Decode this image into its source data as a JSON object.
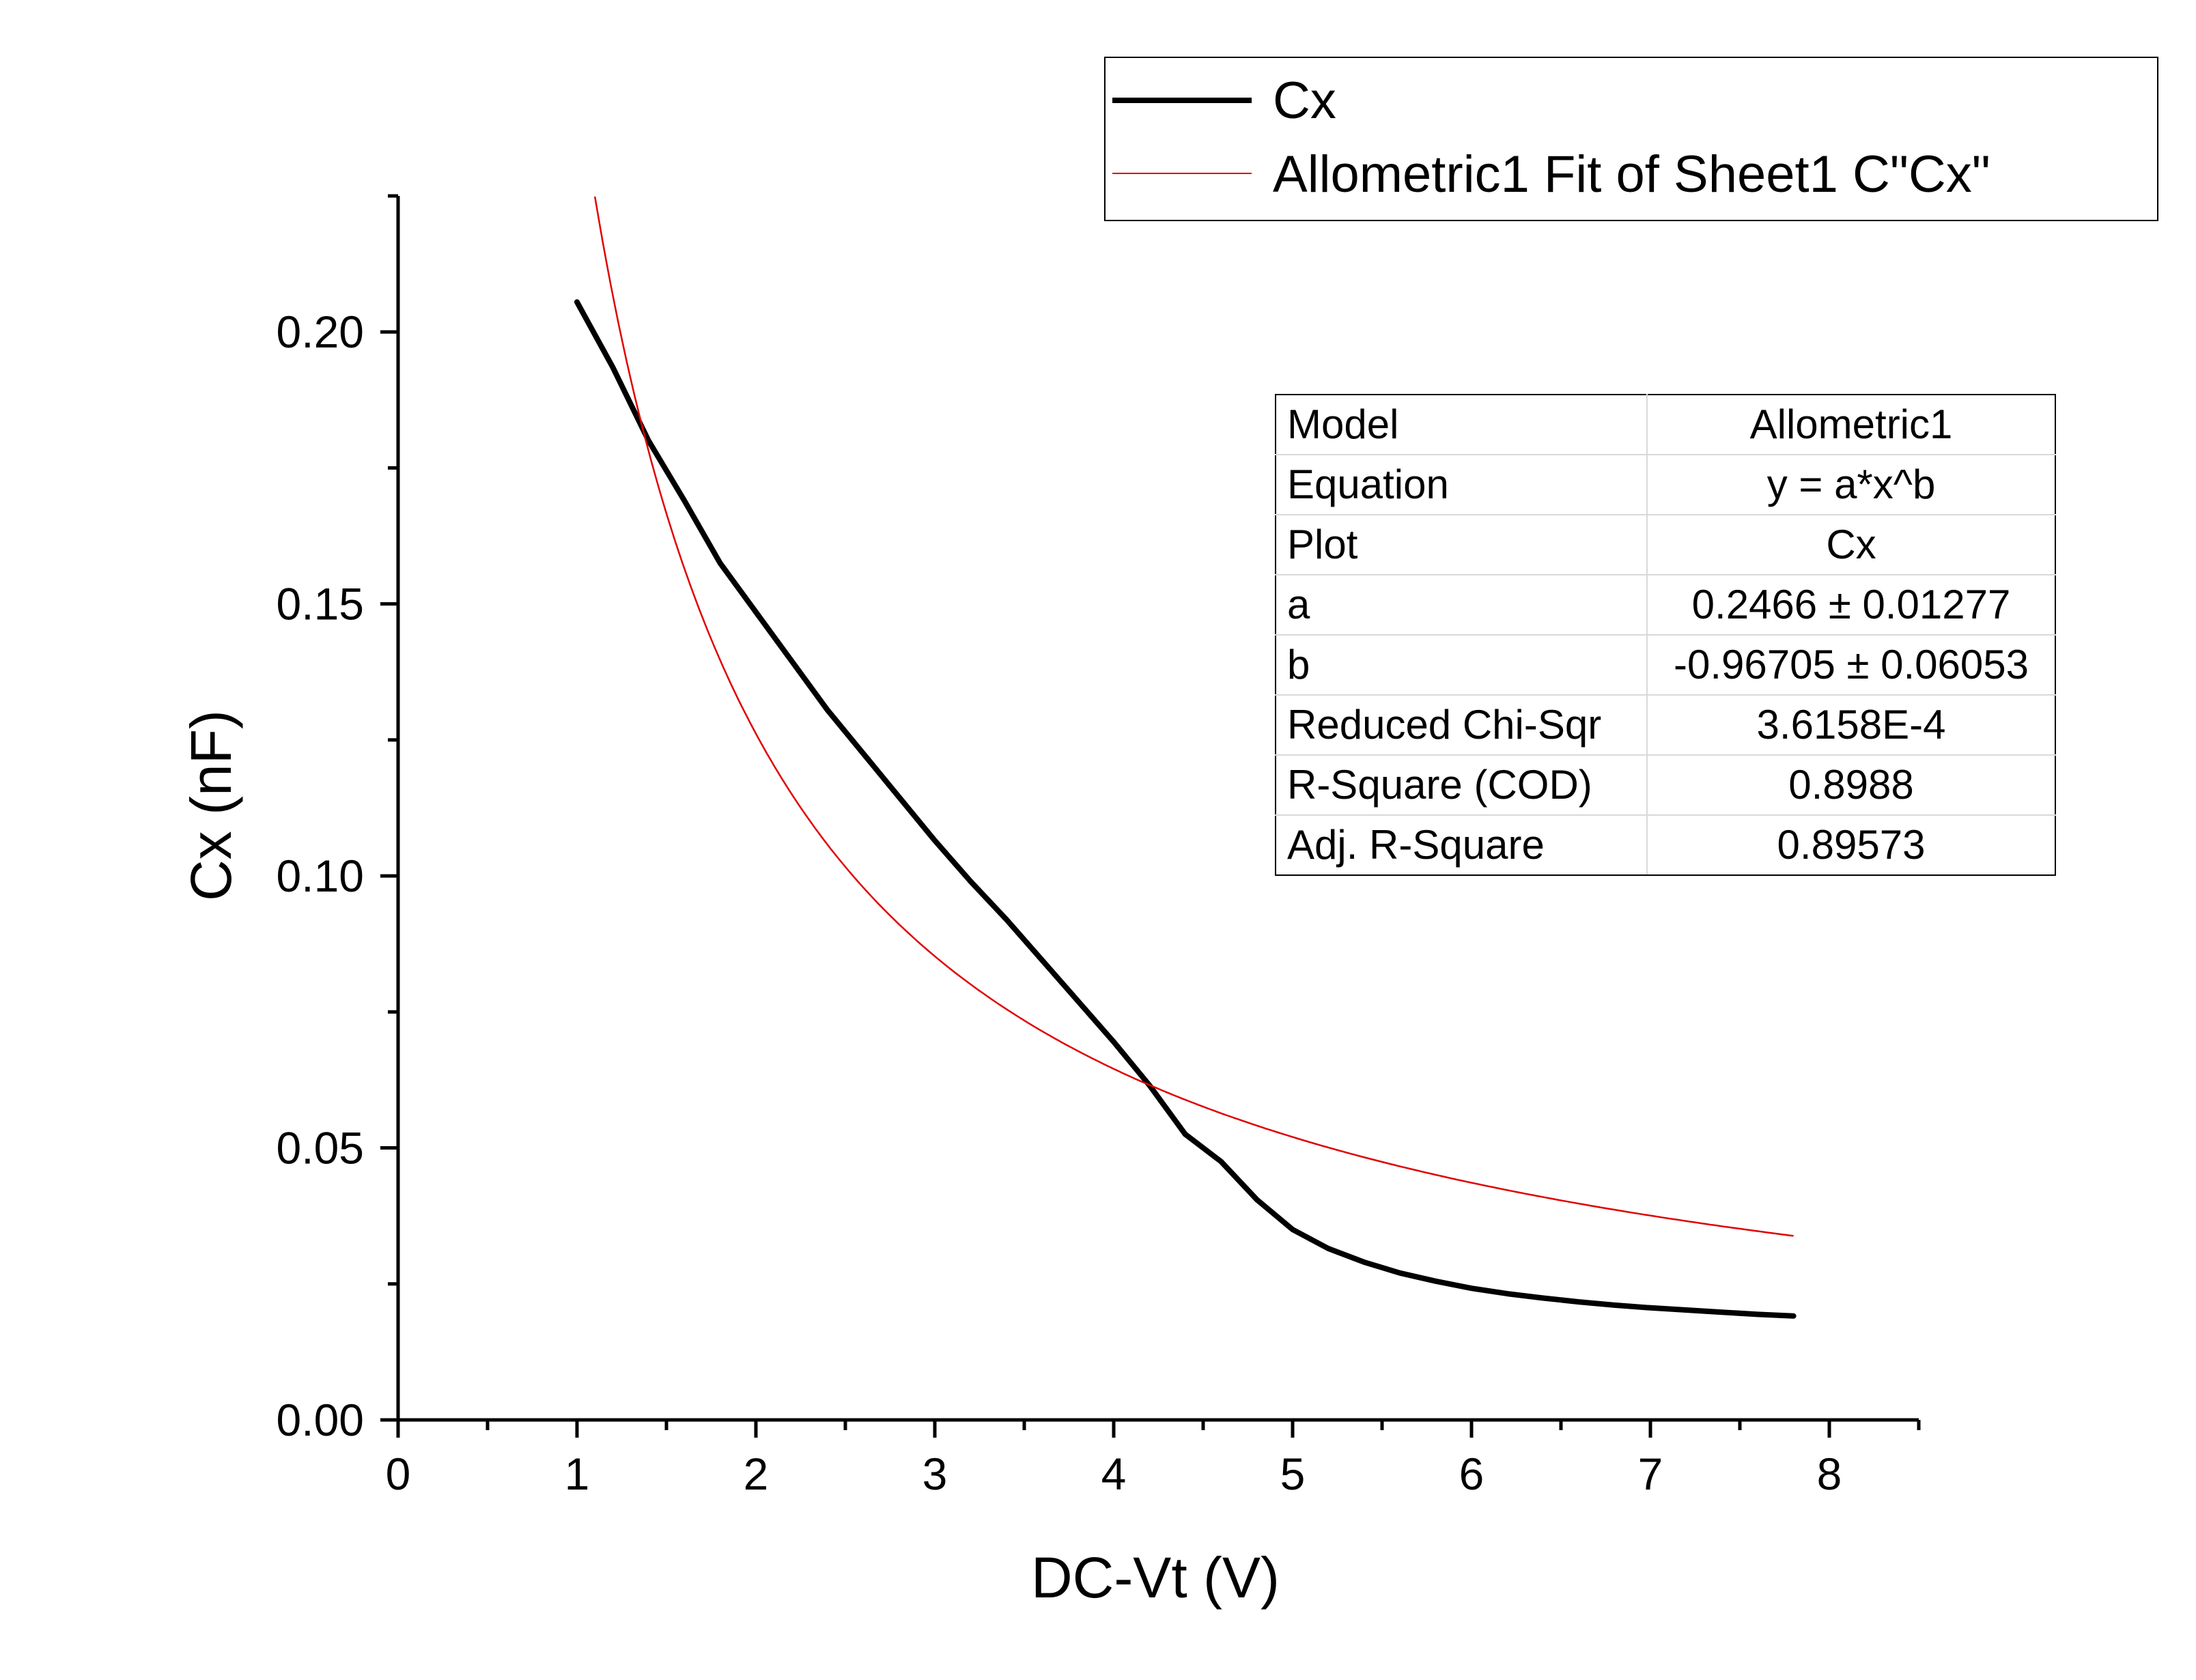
{
  "chart_data": {
    "type": "line",
    "title": "",
    "xlabel": "DC-Vt (V)",
    "ylabel": "Cx (nF)",
    "xlim": [
      0,
      8.5
    ],
    "ylim": [
      0,
      0.225
    ],
    "xticks": [
      "0",
      "1",
      "2",
      "3",
      "4",
      "5",
      "6",
      "7",
      "8"
    ],
    "yticks": [
      "0.00",
      "0.05",
      "0.10",
      "0.15",
      "0.20"
    ],
    "legend_position": "top-right",
    "series": [
      {
        "name": "Cx",
        "color": "#000000",
        "style": "thick",
        "x": [
          1.0,
          1.2,
          1.4,
          1.6,
          1.8,
          2.0,
          2.2,
          2.4,
          2.6,
          2.8,
          3.0,
          3.2,
          3.4,
          3.6,
          3.8,
          4.0,
          4.2,
          4.4,
          4.6,
          4.8,
          5.0,
          5.2,
          5.4,
          5.6,
          5.8,
          6.0,
          6.2,
          6.4,
          6.6,
          6.8,
          7.0,
          7.2,
          7.4,
          7.6,
          7.8
        ],
        "y": [
          0.2055,
          0.1935,
          0.18,
          0.169,
          0.1575,
          0.1485,
          0.1395,
          0.1305,
          0.1225,
          0.1145,
          0.1065,
          0.099,
          0.092,
          0.0845,
          0.077,
          0.0695,
          0.0615,
          0.0525,
          0.0475,
          0.0405,
          0.035,
          0.0315,
          0.029,
          0.027,
          0.0255,
          0.0242,
          0.0232,
          0.0224,
          0.0217,
          0.0211,
          0.0206,
          0.0202,
          0.0198,
          0.0194,
          0.0191
        ]
      },
      {
        "name": "Allometric1 Fit of Sheet1 C\"Cx\"",
        "color": "#e00000",
        "style": "thin",
        "model": {
          "a": 0.2466,
          "b": -0.96705
        },
        "x_range": [
          1.1,
          7.8
        ]
      }
    ],
    "annotations": {
      "fit_table": [
        {
          "key": "Model",
          "value": "Allometric1"
        },
        {
          "key": "Equation",
          "value": "y = a*x^b"
        },
        {
          "key": "Plot",
          "value": "Cx"
        },
        {
          "key": "a",
          "value": "0.2466 ± 0.01277"
        },
        {
          "key": "b",
          "value": "-0.96705 ± 0.06053"
        },
        {
          "key": "Reduced Chi-Sqr",
          "value": "3.6158E-4"
        },
        {
          "key": "R-Square (COD)",
          "value": "0.8988"
        },
        {
          "key": "Adj. R-Square",
          "value": "0.89573"
        }
      ]
    }
  }
}
